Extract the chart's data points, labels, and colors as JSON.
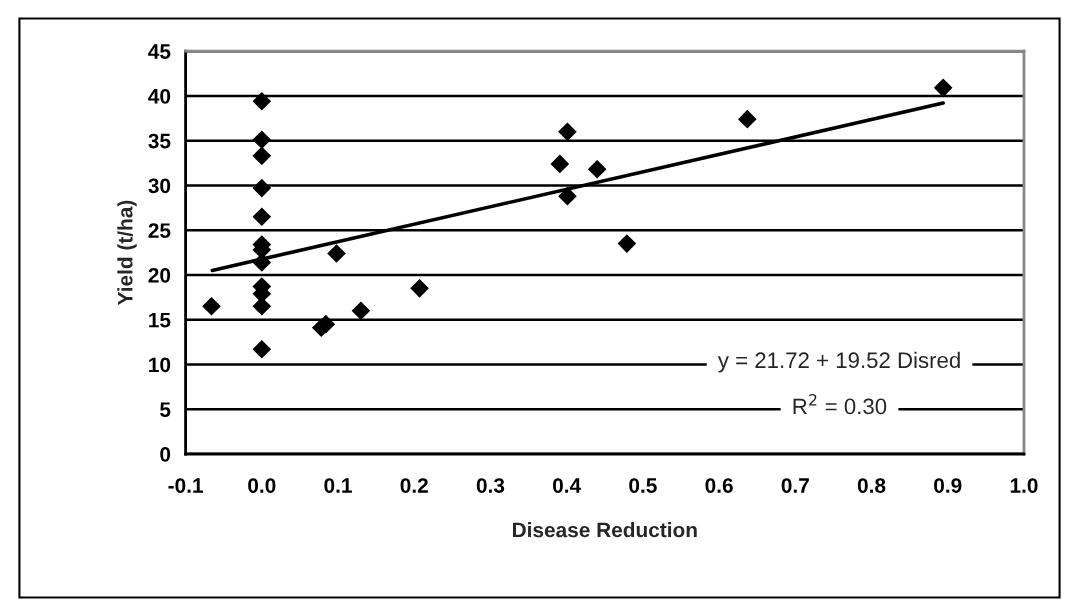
{
  "chart_data": {
    "type": "scatter",
    "xlabel": "Disease Reduction",
    "ylabel": "Yield (t/ha)",
    "series": [
      {
        "color": "#000000",
        "marker": "diamond",
        "x": [
          -0.066,
          0,
          0,
          0,
          0,
          0,
          0,
          0,
          0,
          0,
          0,
          0,
          0,
          0.098,
          0.078,
          0.084,
          0.13,
          0.207,
          0.401,
          0.391,
          0.44,
          0.401,
          0.479,
          0.637,
          0.894
        ],
        "values": [
          16.5,
          39.4,
          35.1,
          33.3,
          29.7,
          26.5,
          23.4,
          22.8,
          21.4,
          18.7,
          17.9,
          16.5,
          11.7,
          22.4,
          14.1,
          14.5,
          16.0,
          18.5,
          36.0,
          32.4,
          31.8,
          28.8,
          23.5,
          37.4,
          40.9
        ]
      },
      {
        "type": "line",
        "color": "#000000",
        "line_style": "solid",
        "x": [
          -0.065,
          0.894
        ],
        "values": [
          20.5,
          39.2
        ]
      }
    ],
    "annotations": [
      "y = 21.72 + 19.52 Disred",
      "R$^{2}$ = 0.30"
    ],
    "xlim": [
      -0.1,
      1.0
    ],
    "xticks": [
      {
        "value": -0.1,
        "label": "-0.1"
      },
      {
        "value": 0,
        "label": "0.0"
      },
      {
        "value": 0.1,
        "label": "0.1"
      },
      {
        "value": 0.2,
        "label": "0.2"
      },
      {
        "value": 0.3,
        "label": "0.3"
      },
      {
        "value": 0.4,
        "label": "0.4"
      },
      {
        "value": 0.5,
        "label": "0.5"
      },
      {
        "value": 0.6,
        "label": "0.6"
      },
      {
        "value": 0.7,
        "label": "0.7"
      },
      {
        "value": 0.8,
        "label": "0.8"
      },
      {
        "value": 0.9,
        "label": "0.9"
      },
      {
        "value": 1.0,
        "label": "1.0"
      }
    ],
    "ylim": [
      0,
      45
    ],
    "yticks": [
      0,
      5,
      10,
      15,
      20,
      25,
      30,
      35,
      40,
      45
    ],
    "grid": "y",
    "legend": false
  }
}
